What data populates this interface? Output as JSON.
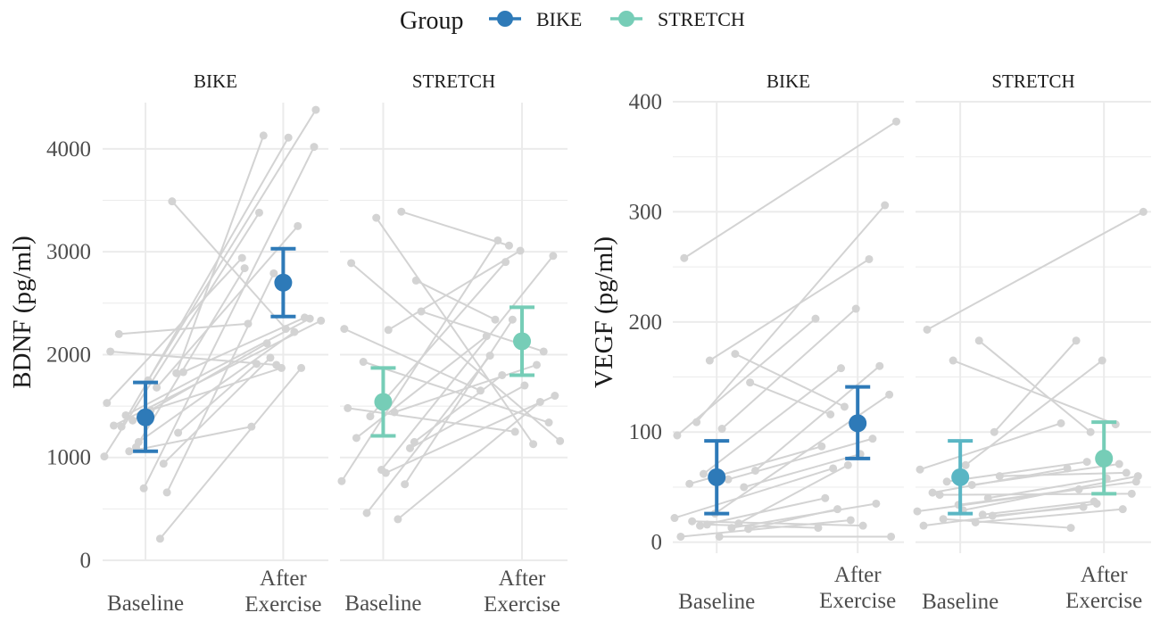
{
  "chart_data": {
    "type": "line",
    "legend": {
      "title": "Group",
      "position": "top",
      "entries": [
        {
          "name": "BIKE",
          "color": "#2e7ab8"
        },
        {
          "name": "STRETCH",
          "color": "#76cdb7"
        }
      ]
    },
    "x_categories": [
      "Baseline",
      "After Exercise"
    ],
    "x_tick_labels": [
      [
        "Baseline"
      ],
      [
        "After",
        "Exercise"
      ]
    ],
    "colors": {
      "BIKE": "#2e7ab8",
      "STRETCH": "#76cdb7",
      "STRETCH_VEGF_baseline": "#5ab6c4",
      "individual": "#d3d3d3"
    },
    "charts": [
      {
        "ylabel": "BDNF (pg/ml)",
        "ylim": [
          0,
          4450
        ],
        "yticks": [
          0,
          1000,
          2000,
          3000,
          4000
        ],
        "panels": [
          {
            "strip": "BIKE",
            "group": "BIKE",
            "summary": {
              "baseline": {
                "mean": 1390,
                "lo": 1060,
                "hi": 1730
              },
              "after": {
                "mean": 2700,
                "lo": 2370,
                "hi": 3030
              }
            },
            "subjects": [
              {
                "b": 1310,
                "a": 2330
              },
              {
                "b": 940,
                "a": 1970
              },
              {
                "b": 1150,
                "a": 2220
              },
              {
                "b": 1240,
                "a": 1910
              },
              {
                "b": 1410,
                "a": 2350
              },
              {
                "b": 1460,
                "a": 1870
              },
              {
                "b": 1530,
                "a": 2940
              },
              {
                "b": 1830,
                "a": 2360
              },
              {
                "b": 1360,
                "a": 2110
              },
              {
                "b": 1680,
                "a": 3250
              },
              {
                "b": 2200,
                "a": 2300
              },
              {
                "b": 3490,
                "a": 2250
              },
              {
                "b": 700,
                "a": 4020
              },
              {
                "b": 1010,
                "a": 3380
              },
              {
                "b": 660,
                "a": 2790
              },
              {
                "b": 1060,
                "a": 1300
              },
              {
                "b": 210,
                "a": 1870
              },
              {
                "b": 2030,
                "a": 1900
              },
              {
                "b": 1750,
                "a": 4380
              },
              {
                "b": 1820,
                "a": 4130
              },
              {
                "b": 1300,
                "a": 4110
              },
              {
                "b": 1100,
                "a": 2840
              }
            ]
          },
          {
            "strip": "STRETCH",
            "group": "STRETCH",
            "summary": {
              "baseline": {
                "mean": 1540,
                "lo": 1210,
                "hi": 1870
              },
              "after": {
                "mean": 2130,
                "lo": 1800,
                "hi": 2460
              }
            },
            "subjects": [
              {
                "b": 2890,
                "a": 1160
              },
              {
                "b": 3390,
                "a": 3060
              },
              {
                "b": 3330,
                "a": 1130
              },
              {
                "b": 2720,
                "a": 2340
              },
              {
                "b": 1930,
                "a": 1340
              },
              {
                "b": 2240,
                "a": 3010
              },
              {
                "b": 2250,
                "a": 1650
              },
              {
                "b": 2420,
                "a": 2030
              },
              {
                "b": 1400,
                "a": 2900
              },
              {
                "b": 1440,
                "a": 1900
              },
              {
                "b": 1190,
                "a": 2180
              },
              {
                "b": 1090,
                "a": 1700
              },
              {
                "b": 880,
                "a": 2960
              },
              {
                "b": 770,
                "a": 3110
              },
              {
                "b": 740,
                "a": 2340
              },
              {
                "b": 460,
                "a": 1990
              },
              {
                "b": 400,
                "a": 1540
              },
              {
                "b": 1480,
                "a": 1250
              },
              {
                "b": 850,
                "a": 1600
              },
              {
                "b": 1150,
                "a": 1800
              }
            ]
          }
        ]
      },
      {
        "ylabel": "VEGF (pg/ml)",
        "ylim": [
          -10,
          400
        ],
        "yticks": [
          0,
          100,
          200,
          300,
          400
        ],
        "panels": [
          {
            "strip": "BIKE",
            "group": "BIKE",
            "summary": {
              "baseline": {
                "mean": 59,
                "lo": 26,
                "hi": 92
              },
              "after": {
                "mean": 108,
                "lo": 76,
                "hi": 141
              }
            },
            "subjects": [
              {
                "b": 258,
                "a": 382
              },
              {
                "b": 171,
                "a": 123
              },
              {
                "b": 165,
                "a": 257
              },
              {
                "b": 145,
                "a": 116
              },
              {
                "b": 109,
                "a": 306
              },
              {
                "b": 103,
                "a": 212
              },
              {
                "b": 97,
                "a": 203
              },
              {
                "b": 65,
                "a": 160
              },
              {
                "b": 62,
                "a": 158
              },
              {
                "b": 57,
                "a": 94
              },
              {
                "b": 53,
                "a": 87
              },
              {
                "b": 50,
                "a": 80
              },
              {
                "b": 26,
                "a": 134
              },
              {
                "b": 22,
                "a": 67
              },
              {
                "b": 17,
                "a": 70
              },
              {
                "b": 15,
                "a": 40
              },
              {
                "b": 13,
                "a": 35
              },
              {
                "b": 5,
                "a": 20
              },
              {
                "b": 5,
                "a": 5
              },
              {
                "b": 12,
                "a": 30
              },
              {
                "b": 19,
                "a": 15
              },
              {
                "b": 16,
                "a": 13
              }
            ]
          },
          {
            "strip": "STRETCH",
            "group": "STRETCH",
            "summary": {
              "baseline": {
                "mean": 59,
                "lo": 26,
                "hi": 92
              },
              "after": {
                "mean": 76,
                "lo": 44,
                "hi": 109
              }
            },
            "subjects": [
              {
                "b": 193,
                "a": 300
              },
              {
                "b": 183,
                "a": 100
              },
              {
                "b": 165,
                "a": 107
              },
              {
                "b": 100,
                "a": 183
              },
              {
                "b": 43,
                "a": 44
              },
              {
                "b": 70,
                "a": 165
              },
              {
                "b": 66,
                "a": 108
              },
              {
                "b": 60,
                "a": 63
              },
              {
                "b": 55,
                "a": 73
              },
              {
                "b": 52,
                "a": 71
              },
              {
                "b": 45,
                "a": 67
              },
              {
                "b": 40,
                "a": 58
              },
              {
                "b": 34,
                "a": 55
              },
              {
                "b": 28,
                "a": 48
              },
              {
                "b": 25,
                "a": 37
              },
              {
                "b": 21,
                "a": 13
              },
              {
                "b": 18,
                "a": 30
              },
              {
                "b": 15,
                "a": 35
              },
              {
                "b": 29,
                "a": 60
              },
              {
                "b": 24,
                "a": 32
              }
            ]
          }
        ]
      }
    ]
  }
}
